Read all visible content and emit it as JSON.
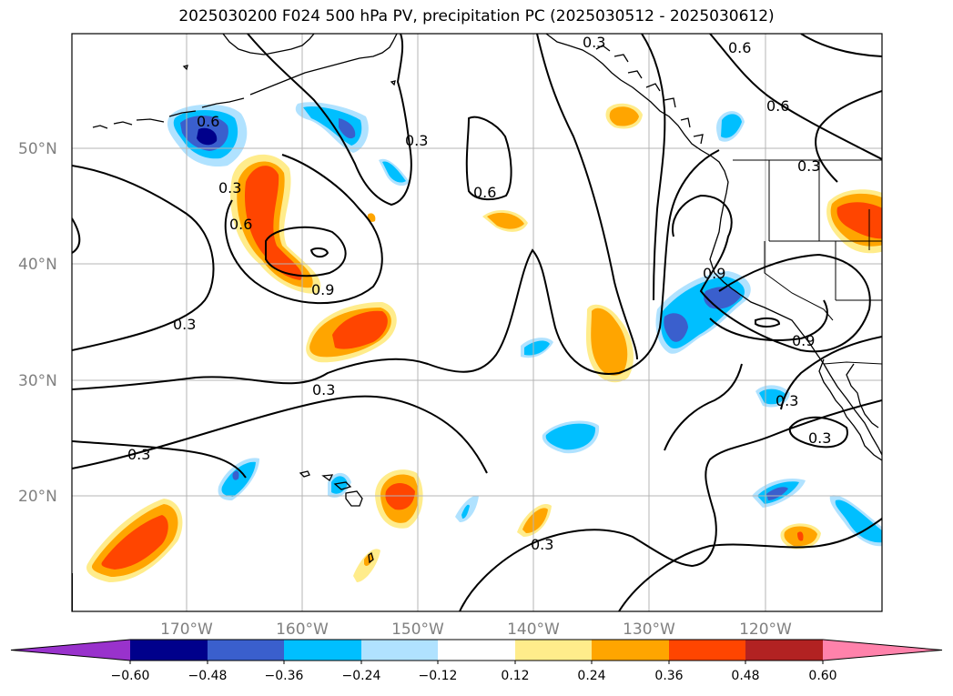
{
  "title": "2025030200 F024 500 hPa PV, precipitation PC (2025030512 - 2025030612)",
  "map": {
    "lat_labels": [
      "50°N",
      "40°N",
      "30°N",
      "20°N"
    ],
    "lon_labels": [
      "170°W",
      "160°W",
      "150°W",
      "140°W",
      "130°W",
      "120°W"
    ]
  },
  "contour_labels": [
    "0.6",
    "0.3",
    "0.6",
    "0.9",
    "0.3",
    "0.3",
    "0.3",
    "0.3",
    "0.6",
    "0.3",
    "0.6",
    "0.6",
    "0.3",
    "0.9",
    "0.9",
    "0.3",
    "0.3",
    "0.3"
  ],
  "colorbar": {
    "tick_labels": [
      "−0.60",
      "−0.48",
      "−0.36",
      "−0.24",
      "−0.12",
      "0.12",
      "0.24",
      "0.36",
      "0.48",
      "0.60"
    ],
    "colors": [
      "#9932cc",
      "#00008b",
      "#3a5fcd",
      "#00bfff",
      "#b0e2ff",
      "#ffffff",
      "#ffec8b",
      "#ffa500",
      "#ff4500",
      "#b22222",
      "#ff82ab"
    ]
  },
  "fill_colors": {
    "light_blue": "#b0e2ff",
    "blue": "#00bfff",
    "royal": "#3a5fcd",
    "navy": "#00008b",
    "yellow": "#ffec8b",
    "orange": "#ffa500",
    "red_orange": "#ff4500"
  }
}
